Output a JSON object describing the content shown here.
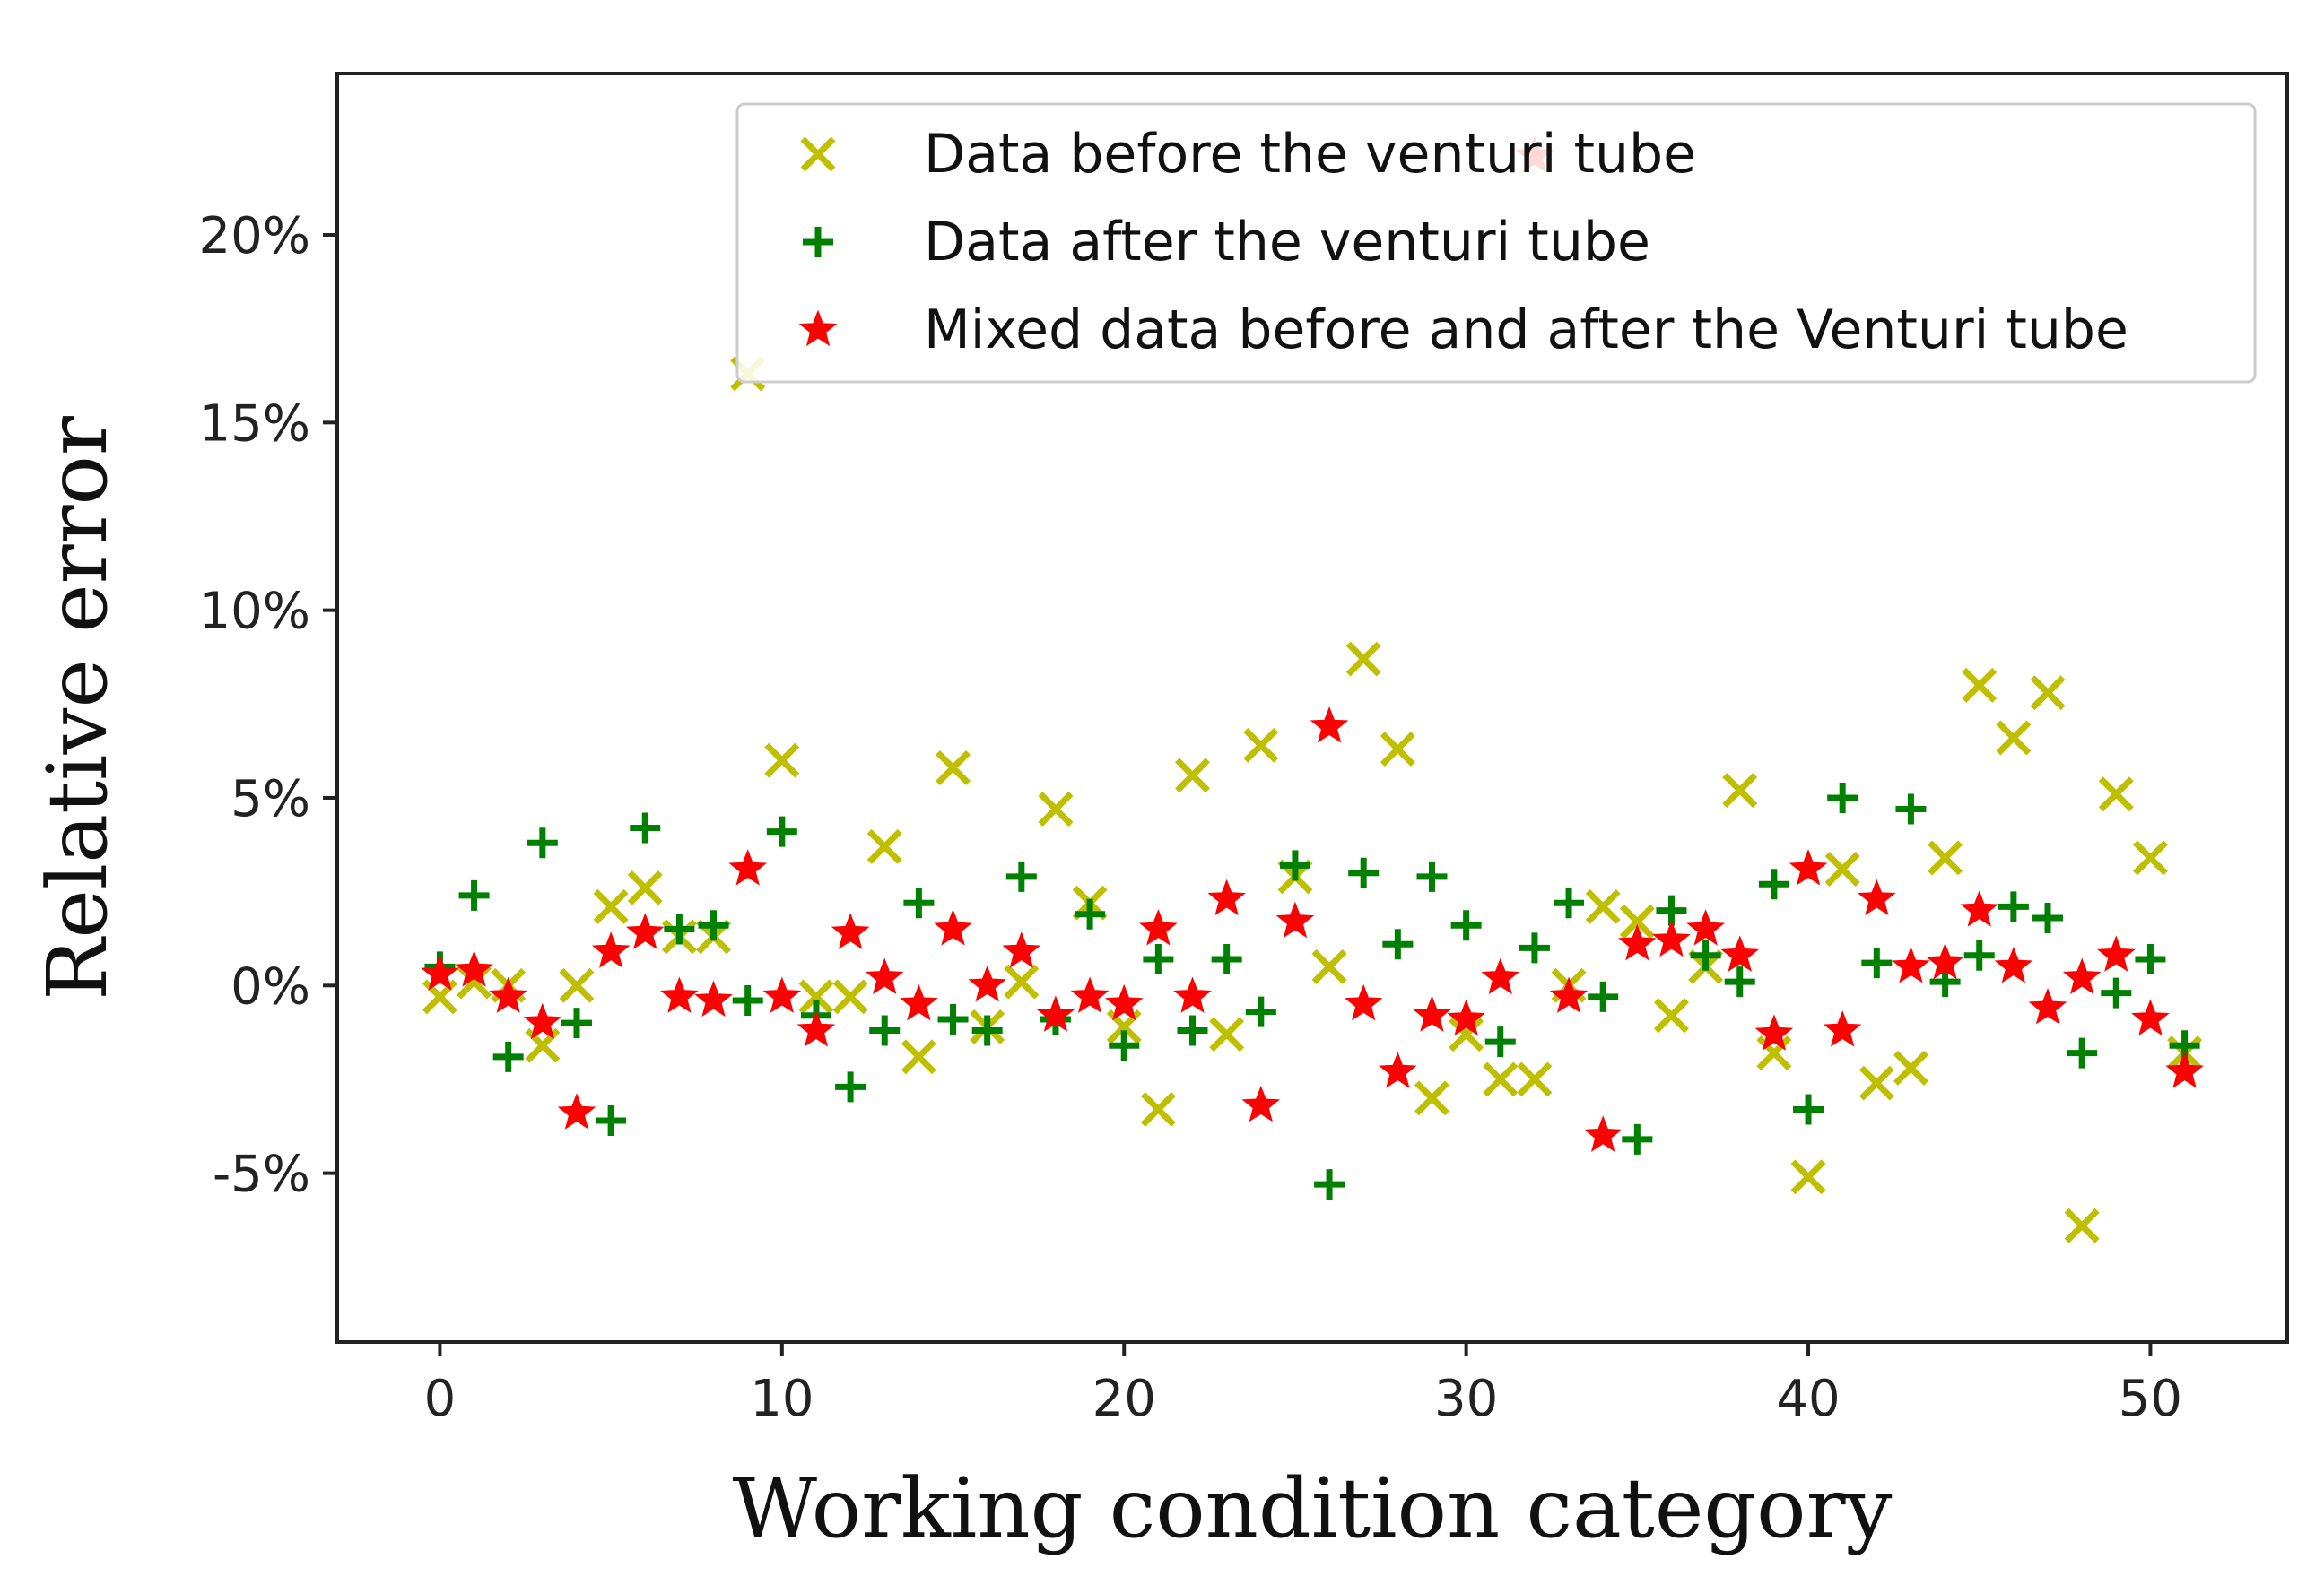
{
  "chart_data": {
    "type": "scatter",
    "title": "",
    "xlabel": "Working condition category",
    "ylabel": "Relative error",
    "xlim": [
      -3,
      54
    ],
    "ylim": [
      -9.5,
      24.3
    ],
    "xticks": [
      0,
      10,
      20,
      30,
      40,
      50
    ],
    "xtick_labels": [
      "0",
      "10",
      "20",
      "30",
      "40",
      "50"
    ],
    "yticks": [
      -5,
      0,
      5,
      10,
      15,
      20
    ],
    "ytick_labels": [
      "-5%",
      "0%",
      "5%",
      "10%",
      "15%",
      "20%"
    ],
    "grid": false,
    "legend_position": "top-right",
    "series": [
      {
        "name": "Data before the venturi tube",
        "marker": "x",
        "color": "#bfbf00",
        "x": [
          0,
          1,
          2,
          3,
          4,
          5,
          6,
          7,
          8,
          9,
          10,
          11,
          12,
          13,
          14,
          15,
          16,
          17,
          18,
          19,
          20,
          21,
          22,
          23,
          24,
          25,
          26,
          27,
          28,
          29,
          30,
          31,
          32,
          33,
          34,
          35,
          36,
          37,
          38,
          39,
          40,
          41,
          42,
          43,
          44,
          45,
          46,
          47,
          48,
          49,
          50,
          51
        ],
        "y": [
          -0.3,
          0.1,
          0,
          -1.6,
          0,
          2.1,
          2.6,
          1.3,
          1.3,
          16.3,
          6.0,
          -0.3,
          -0.3,
          3.7,
          -1.9,
          5.8,
          -1.1,
          0.1,
          4.7,
          2.2,
          -1.1,
          -3.3,
          5.6,
          -1.3,
          6.4,
          2.9,
          0.5,
          8.7,
          6.3,
          -3.0,
          -1.3,
          -2.5,
          -2.5,
          0,
          2.1,
          1.7,
          -0.8,
          0.5,
          5.2,
          -1.8,
          -5.1,
          3.1,
          -2.6,
          -2.2,
          3.4,
          8.0,
          6.6,
          7.8,
          -6.4,
          5.1,
          3.4,
          -1.8
        ]
      },
      {
        "name": "Data after the venturi tube",
        "marker": "+",
        "color": "#008000",
        "x": [
          0,
          1,
          2,
          3,
          4,
          5,
          6,
          7,
          8,
          9,
          10,
          11,
          12,
          13,
          14,
          15,
          16,
          17,
          18,
          19,
          20,
          21,
          22,
          23,
          24,
          25,
          26,
          27,
          28,
          29,
          30,
          31,
          32,
          33,
          34,
          35,
          36,
          37,
          38,
          39,
          40,
          41,
          42,
          43,
          44,
          45,
          46,
          47,
          48,
          49,
          50,
          51
        ],
        "y": [
          0.5,
          2.4,
          -1.9,
          3.8,
          -1.0,
          -3.6,
          4.2,
          1.5,
          1.6,
          -0.4,
          4.1,
          -0.8,
          -2.7,
          -1.2,
          2.2,
          -0.9,
          -1.2,
          2.9,
          -0.9,
          1.9,
          -1.6,
          0.7,
          -1.2,
          0.7,
          -0.7,
          3.2,
          -5.3,
          3.0,
          1.1,
          2.9,
          1.6,
          -1.5,
          1.0,
          2.2,
          -0.3,
          -4.1,
          2.0,
          0.8,
          0.1,
          2.7,
          -3.3,
          5.0,
          0.6,
          4.7,
          0.1,
          0.8,
          2.1,
          1.8,
          -1.8,
          -0.2,
          0.7,
          -1.6
        ]
      },
      {
        "name": "Mixed data before and after the Venturi tube",
        "marker": "*",
        "color": "#ff0000",
        "x": [
          0,
          1,
          2,
          3,
          4,
          5,
          6,
          7,
          8,
          9,
          10,
          11,
          12,
          13,
          14,
          15,
          16,
          17,
          18,
          19,
          20,
          21,
          22,
          23,
          24,
          25,
          26,
          27,
          28,
          29,
          30,
          31,
          32,
          33,
          34,
          35,
          36,
          37,
          38,
          39,
          40,
          41,
          42,
          43,
          44,
          45,
          46,
          47,
          48,
          49,
          50,
          51
        ],
        "y": [
          0.3,
          0.4,
          -0.3,
          -1.0,
          -3.4,
          0.9,
          1.4,
          -0.3,
          -0.4,
          3.1,
          -0.3,
          -1.2,
          1.4,
          0.2,
          -0.5,
          1.5,
          0,
          0.9,
          -0.8,
          -0.3,
          -0.5,
          1.5,
          -0.3,
          2.3,
          -3.2,
          1.7,
          6.9,
          -0.5,
          -2.3,
          -0.8,
          -0.9,
          0.2,
          22.1,
          -0.3,
          -4.0,
          1.1,
          1.2,
          1.5,
          0.8,
          -1.3,
          3.1,
          -1.2,
          2.3,
          0.5,
          0.6,
          2.0,
          0.5,
          -0.6,
          0.2,
          0.8,
          -0.9,
          -2.3
        ]
      }
    ]
  }
}
